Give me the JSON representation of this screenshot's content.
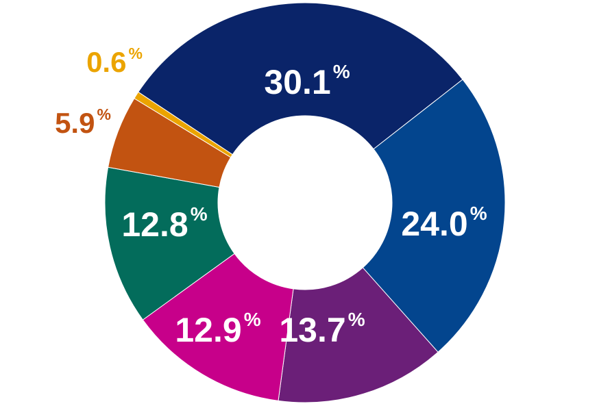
{
  "chart_data": {
    "type": "pie",
    "donut": true,
    "slices": [
      {
        "label": "30.1",
        "value": 30.1,
        "color": "#0A2469",
        "label_color": "#FFFFFF"
      },
      {
        "label": "24.0",
        "value": 24.0,
        "color": "#03458E",
        "label_color": "#FFFFFF"
      },
      {
        "label": "13.7",
        "value": 13.7,
        "color": "#6B1F78",
        "label_color": "#FFFFFF"
      },
      {
        "label": "12.9",
        "value": 12.9,
        "color": "#C7008A",
        "label_color": "#FFFFFF"
      },
      {
        "label": "12.8",
        "value": 12.8,
        "color": "#036C5B",
        "label_color": "#FFFFFF"
      },
      {
        "label": "5.9",
        "value": 5.9,
        "color": "#C25311",
        "label_color": "#C25311"
      },
      {
        "label": "0.6",
        "value": 0.6,
        "color": "#EBA400",
        "label_color": "#EBA400"
      }
    ],
    "unit_suffix": "%"
  }
}
